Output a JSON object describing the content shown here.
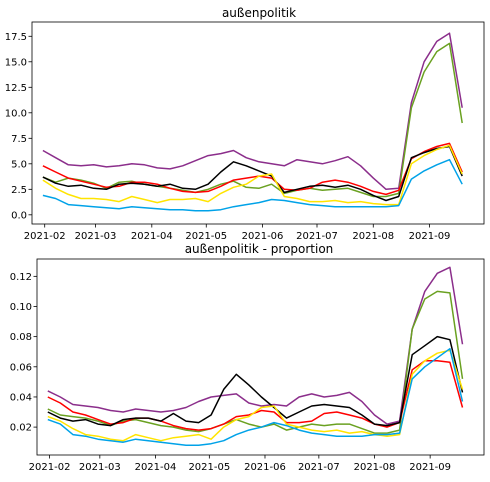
{
  "chart_data": [
    {
      "type": "line",
      "title": "außenpolitik",
      "xlabel": "",
      "ylabel": "",
      "xlim": [
        "2021-01-25",
        "2021-10-01"
      ],
      "ylim": [
        -0.9,
        18.9
      ],
      "x_ticks": [
        "2021-02",
        "2021-03",
        "2021-04",
        "2021-05",
        "2021-06",
        "2021-07",
        "2021-08",
        "2021-09"
      ],
      "y_ticks": [
        0.0,
        2.5,
        5.0,
        7.5,
        10.0,
        12.5,
        15.0,
        17.5
      ],
      "y_tick_labels": [
        "0.0",
        "2.5",
        "5.0",
        "7.5",
        "10.0",
        "12.5",
        "15.0",
        "17.5"
      ],
      "grid": false,
      "x": [
        "2021-01-31",
        "2021-02-07",
        "2021-02-14",
        "2021-02-21",
        "2021-02-28",
        "2021-03-07",
        "2021-03-14",
        "2021-03-21",
        "2021-03-28",
        "2021-04-04",
        "2021-04-11",
        "2021-04-18",
        "2021-04-25",
        "2021-05-02",
        "2021-05-09",
        "2021-05-16",
        "2021-05-23",
        "2021-05-30",
        "2021-06-06",
        "2021-06-13",
        "2021-06-20",
        "2021-06-27",
        "2021-07-04",
        "2021-07-11",
        "2021-07-18",
        "2021-07-25",
        "2021-08-01",
        "2021-08-08",
        "2021-08-15",
        "2021-08-22",
        "2021-08-29",
        "2021-09-05",
        "2021-09-12",
        "2021-09-19"
      ],
      "series": [
        {
          "color": "#8B2E8B",
          "values": [
            6.3,
            5.6,
            4.9,
            4.8,
            4.9,
            4.7,
            4.8,
            5.0,
            4.9,
            4.6,
            4.5,
            4.8,
            5.3,
            5.8,
            6.0,
            6.3,
            5.6,
            5.2,
            5.0,
            4.8,
            5.4,
            5.2,
            5.0,
            5.3,
            5.7,
            4.8,
            3.6,
            2.5,
            2.6,
            11.0,
            15.0,
            17.0,
            17.8,
            10.5
          ]
        },
        {
          "color": "#6AA121",
          "values": [
            3.7,
            3.2,
            3.6,
            3.4,
            3.1,
            2.6,
            3.2,
            3.3,
            3.0,
            2.8,
            2.6,
            2.4,
            2.2,
            2.5,
            3.0,
            3.3,
            2.7,
            2.6,
            3.0,
            2.1,
            2.4,
            2.6,
            2.4,
            2.5,
            2.6,
            2.2,
            1.8,
            1.8,
            2.1,
            10.5,
            14.0,
            16.0,
            16.8,
            9.0
          ]
        },
        {
          "color": "#FF0000",
          "values": [
            4.8,
            4.2,
            3.6,
            3.3,
            3.0,
            2.7,
            2.8,
            3.2,
            3.2,
            3.0,
            2.6,
            2.3,
            2.2,
            2.3,
            2.8,
            3.4,
            3.6,
            3.8,
            3.6,
            2.5,
            2.4,
            2.6,
            3.2,
            3.4,
            3.2,
            2.8,
            2.3,
            2.0,
            2.4,
            5.5,
            6.2,
            6.7,
            7.0,
            4.2
          ]
        },
        {
          "color": "#000000",
          "values": [
            3.7,
            3.1,
            2.8,
            2.9,
            2.6,
            2.5,
            3.0,
            3.1,
            3.0,
            2.8,
            3.0,
            2.6,
            2.5,
            3.0,
            4.2,
            5.2,
            4.8,
            4.3,
            3.8,
            2.2,
            2.5,
            2.8,
            2.9,
            2.7,
            2.9,
            2.5,
            1.9,
            1.4,
            1.8,
            5.6,
            6.1,
            6.5,
            6.7,
            3.8
          ]
        },
        {
          "color": "#FFE400",
          "values": [
            3.4,
            2.6,
            2.0,
            1.6,
            1.6,
            1.5,
            1.3,
            1.8,
            1.5,
            1.2,
            1.5,
            1.5,
            1.6,
            1.3,
            2.1,
            2.7,
            3.0,
            3.8,
            4.0,
            1.8,
            1.6,
            1.3,
            1.3,
            1.4,
            1.2,
            1.3,
            1.1,
            1.0,
            1.0,
            5.0,
            5.8,
            6.4,
            6.8,
            4.0
          ]
        },
        {
          "color": "#00A2E8",
          "values": [
            1.9,
            1.6,
            1.0,
            0.9,
            0.8,
            0.7,
            0.6,
            0.8,
            0.7,
            0.6,
            0.5,
            0.5,
            0.4,
            0.4,
            0.5,
            0.8,
            1.0,
            1.2,
            1.5,
            1.4,
            1.2,
            1.0,
            0.9,
            0.8,
            0.8,
            0.8,
            0.8,
            0.8,
            0.9,
            3.5,
            4.3,
            4.9,
            5.4,
            3.0
          ]
        }
      ]
    },
    {
      "type": "line",
      "title": "außenpolitik - proportion",
      "xlabel": "",
      "ylabel": "",
      "xlim": [
        "2021-01-25",
        "2021-10-01"
      ],
      "ylim": [
        0.0015,
        0.1315
      ],
      "x_ticks": [
        "2021-02",
        "2021-03",
        "2021-04",
        "2021-05",
        "2021-06",
        "2021-07",
        "2021-08",
        "2021-09"
      ],
      "y_ticks": [
        0.02,
        0.04,
        0.06,
        0.08,
        0.1,
        0.12
      ],
      "y_tick_labels": [
        "0.02",
        "0.04",
        "0.06",
        "0.08",
        "0.10",
        "0.12"
      ],
      "grid": false,
      "x": [
        "2021-01-31",
        "2021-02-07",
        "2021-02-14",
        "2021-02-21",
        "2021-02-28",
        "2021-03-07",
        "2021-03-14",
        "2021-03-21",
        "2021-03-28",
        "2021-04-04",
        "2021-04-11",
        "2021-04-18",
        "2021-04-25",
        "2021-05-02",
        "2021-05-09",
        "2021-05-16",
        "2021-05-23",
        "2021-05-30",
        "2021-06-06",
        "2021-06-13",
        "2021-06-20",
        "2021-06-27",
        "2021-07-04",
        "2021-07-11",
        "2021-07-18",
        "2021-07-25",
        "2021-08-01",
        "2021-08-08",
        "2021-08-15",
        "2021-08-22",
        "2021-08-29",
        "2021-09-05",
        "2021-09-12",
        "2021-09-19"
      ],
      "series": [
        {
          "color": "#8B2E8B",
          "values": [
            0.044,
            0.04,
            0.035,
            0.034,
            0.033,
            0.031,
            0.03,
            0.032,
            0.031,
            0.03,
            0.031,
            0.033,
            0.037,
            0.04,
            0.041,
            0.042,
            0.036,
            0.034,
            0.035,
            0.034,
            0.04,
            0.042,
            0.04,
            0.041,
            0.043,
            0.037,
            0.028,
            0.022,
            0.024,
            0.085,
            0.11,
            0.122,
            0.126,
            0.075
          ]
        },
        {
          "color": "#6AA121",
          "values": [
            0.032,
            0.028,
            0.027,
            0.026,
            0.024,
            0.021,
            0.024,
            0.025,
            0.023,
            0.021,
            0.02,
            0.018,
            0.017,
            0.019,
            0.022,
            0.025,
            0.022,
            0.02,
            0.022,
            0.018,
            0.02,
            0.022,
            0.021,
            0.022,
            0.022,
            0.019,
            0.016,
            0.016,
            0.018,
            0.085,
            0.105,
            0.11,
            0.109,
            0.052
          ]
        },
        {
          "color": "#FF0000",
          "values": [
            0.04,
            0.036,
            0.03,
            0.028,
            0.025,
            0.022,
            0.023,
            0.026,
            0.026,
            0.024,
            0.021,
            0.019,
            0.018,
            0.019,
            0.022,
            0.027,
            0.028,
            0.031,
            0.03,
            0.023,
            0.023,
            0.024,
            0.029,
            0.03,
            0.028,
            0.026,
            0.022,
            0.02,
            0.023,
            0.058,
            0.064,
            0.064,
            0.063,
            0.033
          ]
        },
        {
          "color": "#000000",
          "values": [
            0.03,
            0.026,
            0.024,
            0.025,
            0.022,
            0.021,
            0.025,
            0.026,
            0.026,
            0.024,
            0.029,
            0.024,
            0.023,
            0.028,
            0.045,
            0.055,
            0.048,
            0.04,
            0.033,
            0.026,
            0.03,
            0.034,
            0.035,
            0.034,
            0.033,
            0.028,
            0.022,
            0.021,
            0.023,
            0.068,
            0.074,
            0.08,
            0.078,
            0.043
          ]
        },
        {
          "color": "#FFE400",
          "values": [
            0.027,
            0.024,
            0.019,
            0.015,
            0.014,
            0.012,
            0.011,
            0.015,
            0.013,
            0.011,
            0.013,
            0.014,
            0.015,
            0.012,
            0.02,
            0.025,
            0.027,
            0.033,
            0.034,
            0.022,
            0.02,
            0.018,
            0.017,
            0.018,
            0.016,
            0.017,
            0.015,
            0.014,
            0.015,
            0.055,
            0.064,
            0.069,
            0.071,
            0.045
          ]
        },
        {
          "color": "#00A2E8",
          "values": [
            0.025,
            0.022,
            0.015,
            0.014,
            0.012,
            0.011,
            0.01,
            0.012,
            0.011,
            0.01,
            0.009,
            0.008,
            0.008,
            0.009,
            0.011,
            0.015,
            0.018,
            0.02,
            0.023,
            0.021,
            0.018,
            0.016,
            0.015,
            0.014,
            0.014,
            0.014,
            0.015,
            0.015,
            0.016,
            0.052,
            0.06,
            0.066,
            0.072,
            0.037
          ]
        }
      ]
    }
  ]
}
